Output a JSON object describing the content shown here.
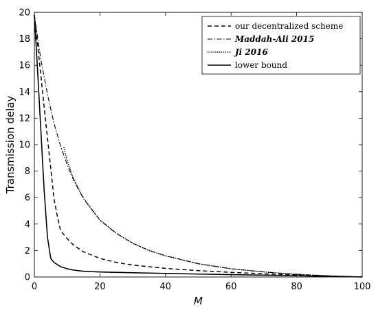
{
  "chart_data": {
    "type": "line",
    "xlabel": "M",
    "ylabel": "Transmission delay",
    "xlim": [
      0,
      100
    ],
    "ylim": [
      0,
      20
    ],
    "x_ticks": [
      0,
      20,
      40,
      60,
      80,
      100
    ],
    "y_ticks": [
      0,
      2,
      4,
      6,
      8,
      10,
      12,
      14,
      16,
      18,
      20
    ],
    "x_tick_labels": [
      "0",
      "20",
      "40",
      "60",
      "80",
      "100"
    ],
    "y_tick_labels": [
      "0",
      "2",
      "4",
      "6",
      "8",
      "10",
      "12",
      "14",
      "16",
      "18",
      "20"
    ],
    "grid": false,
    "legend_position": "top-right",
    "series": [
      {
        "name": "our decentralized scheme",
        "style": "dashed",
        "x": [
          0,
          1,
          2,
          3,
          4,
          5,
          6,
          7,
          8,
          10,
          12,
          15,
          20,
          25,
          30,
          40,
          50,
          60,
          70,
          80,
          90,
          100
        ],
        "y": [
          19.8,
          17.5,
          15.2,
          12.8,
          10.5,
          8.2,
          5.9,
          4.6,
          3.5,
          2.9,
          2.4,
          1.9,
          1.4,
          1.1,
          0.9,
          0.65,
          0.48,
          0.35,
          0.24,
          0.15,
          0.07,
          0.0
        ]
      },
      {
        "name": "Maddah-Ali 2015",
        "style": "dashdot",
        "x": [
          0,
          2,
          4,
          6,
          8,
          10,
          12,
          15,
          20,
          25,
          30,
          35,
          40,
          50,
          60,
          70,
          80,
          90,
          100
        ],
        "y": [
          19.8,
          16.4,
          13.8,
          11.6,
          9.9,
          8.5,
          7.3,
          5.9,
          4.3,
          3.3,
          2.55,
          2.0,
          1.6,
          1.0,
          0.62,
          0.38,
          0.2,
          0.08,
          0.0
        ]
      },
      {
        "name": "Ji 2016",
        "style": "dotted",
        "x": [
          9,
          10,
          12,
          15,
          20,
          25,
          30,
          35,
          40,
          50,
          60,
          70,
          80,
          90,
          100
        ],
        "y": [
          9.8,
          8.8,
          7.4,
          5.95,
          4.3,
          3.3,
          2.55,
          2.0,
          1.6,
          1.0,
          0.62,
          0.38,
          0.2,
          0.08,
          0.0
        ]
      },
      {
        "name": "lower bound",
        "style": "solid",
        "x": [
          0,
          1,
          2,
          3,
          4,
          5,
          6,
          8,
          10,
          12,
          15,
          20,
          30,
          40,
          50,
          60,
          70,
          80,
          90,
          100
        ],
        "y": [
          19.8,
          15.5,
          11.0,
          6.5,
          3.0,
          1.4,
          1.1,
          0.78,
          0.62,
          0.52,
          0.43,
          0.38,
          0.32,
          0.27,
          0.22,
          0.18,
          0.14,
          0.09,
          0.05,
          0.0
        ]
      }
    ]
  }
}
